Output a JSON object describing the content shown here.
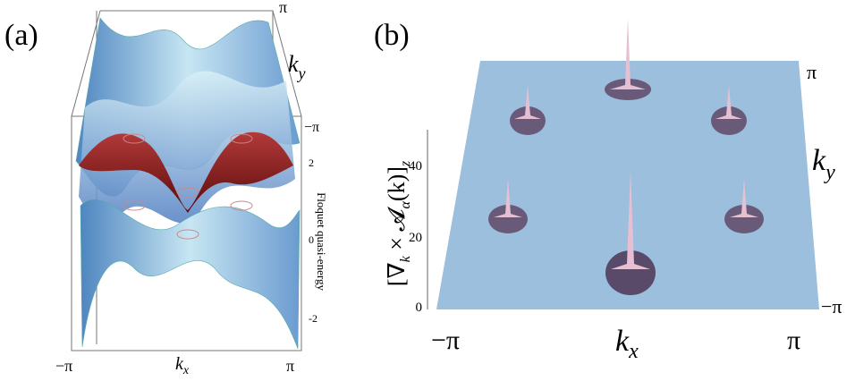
{
  "panels": [
    {
      "label": "(a)",
      "top_right_tick": "π",
      "ky": {
        "base": "k",
        "sub": "y"
      },
      "ky_tick": "−π",
      "z_label": "Floquet quasi-energy",
      "z_ticks": [
        "2",
        "0",
        "-2"
      ],
      "kx": {
        "base": "k",
        "sub": "x"
      },
      "kx_ticks": [
        "−π",
        "π"
      ]
    },
    {
      "label": "(b)",
      "ky_ticks": [
        "π",
        "−π"
      ],
      "ky": {
        "base": "k",
        "sub": "y"
      },
      "z_label": {
        "open": "[∇",
        "sub1": "k",
        "mid": " × 𝓐",
        "sub2": "α",
        "arg": "(k)]",
        "sub3": "z"
      },
      "z_ticks": [
        "40",
        "20",
        "0"
      ],
      "kx": {
        "base": "k",
        "sub": "x"
      },
      "kx_ticks": [
        "−π",
        "π"
      ]
    }
  ]
}
